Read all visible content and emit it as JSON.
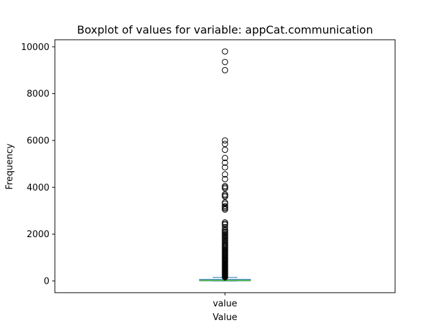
{
  "chart_data": {
    "type": "boxplot",
    "title": "Boxplot of values for variable: appCat.communication",
    "xlabel": "Value",
    "ylabel": "Frequency",
    "categories": [
      "value"
    ],
    "ylim": [
      -500,
      10300
    ],
    "yticks": [
      0,
      2000,
      4000,
      6000,
      8000,
      10000
    ],
    "grid": false,
    "box": {
      "q1": 5,
      "median": 20,
      "q3": 70,
      "whisker_low": 0,
      "whisker_high": 150
    },
    "outliers": [
      160,
      180,
      200,
      220,
      240,
      260,
      280,
      300,
      320,
      340,
      360,
      380,
      400,
      420,
      440,
      460,
      480,
      500,
      530,
      560,
      590,
      620,
      650,
      680,
      710,
      740,
      770,
      800,
      830,
      860,
      890,
      920,
      950,
      980,
      1020,
      1060,
      1100,
      1140,
      1180,
      1220,
      1260,
      1300,
      1340,
      1380,
      1420,
      1460,
      1500,
      1550,
      1600,
      1650,
      1700,
      1750,
      1800,
      1850,
      1900,
      1950,
      2000,
      2050,
      2100,
      2150,
      2200,
      2300,
      2400,
      2450,
      2500,
      3050,
      3100,
      3150,
      3200,
      3300,
      3350,
      3600,
      3650,
      3700,
      3950,
      4000,
      4050,
      4350,
      4550,
      4850,
      5050,
      5250,
      5600,
      5850,
      6000,
      9000,
      9350,
      9800
    ],
    "colors": {
      "box": "#1f77b4",
      "median": "#2ca02c",
      "outlier_edge": "#000000"
    }
  }
}
